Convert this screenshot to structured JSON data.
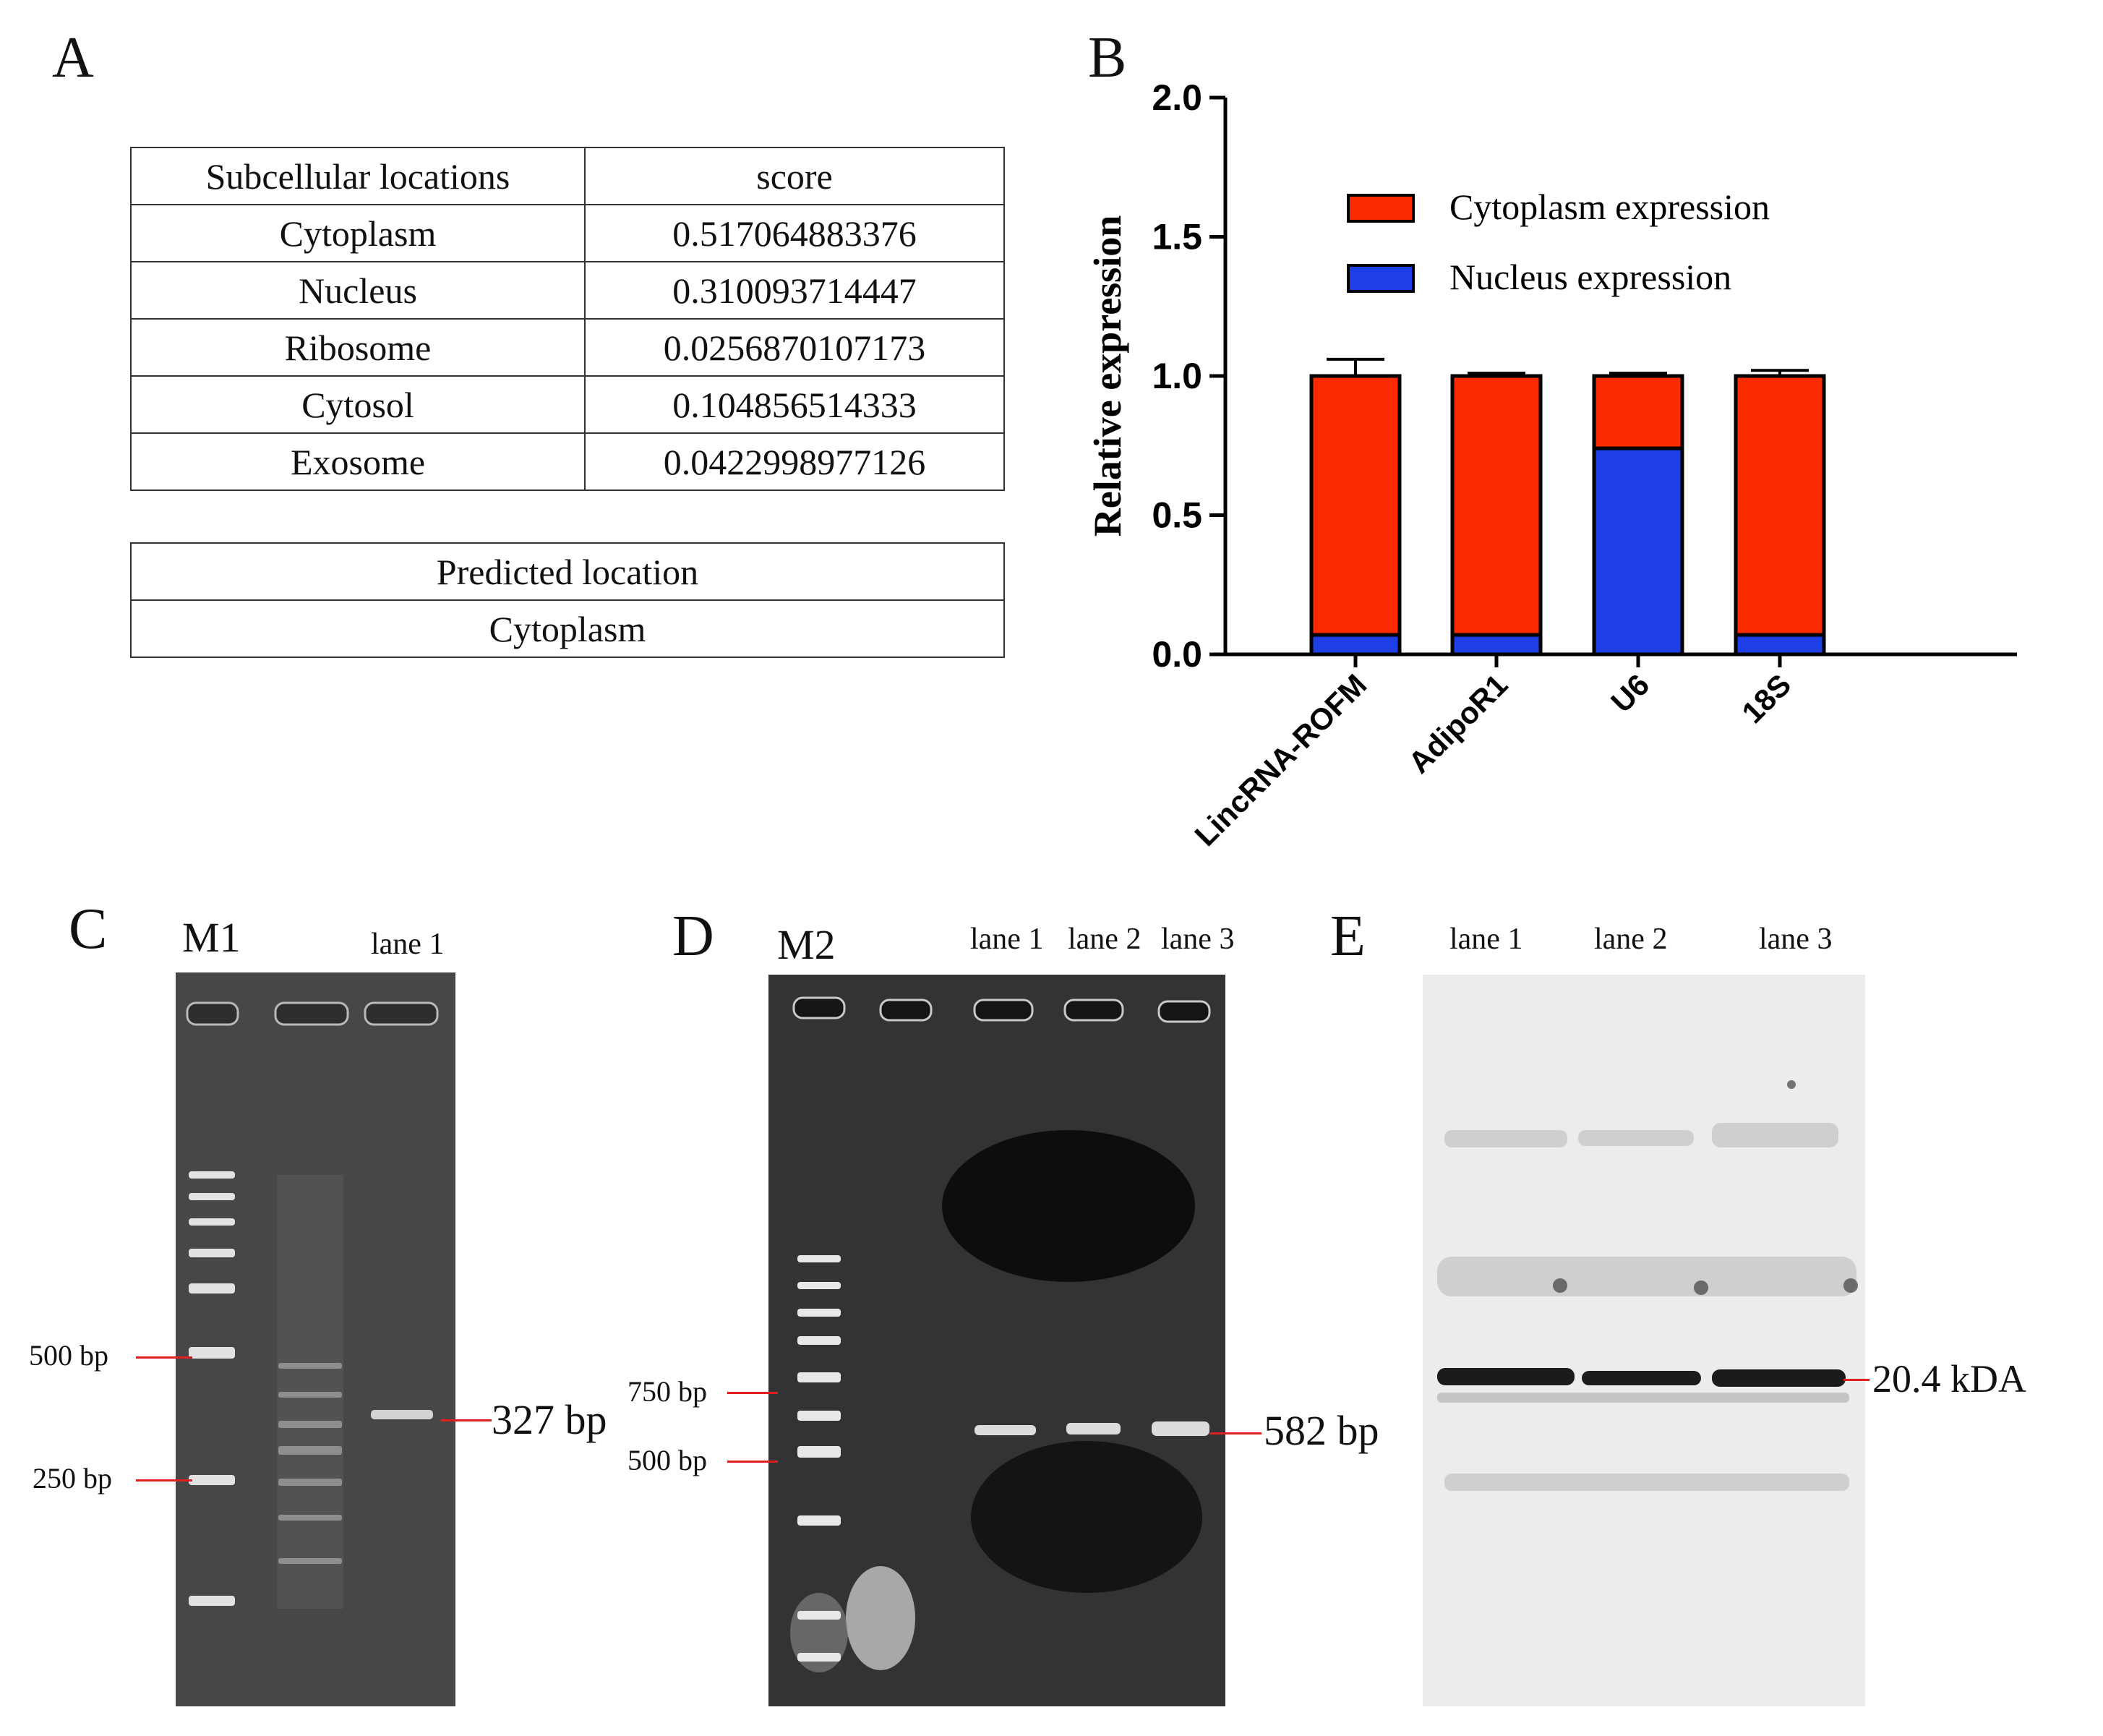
{
  "panels": {
    "a": {
      "letter": "A"
    },
    "b": {
      "letter": "B"
    },
    "c": {
      "letter": "C",
      "marker": "M1",
      "lane": "lane 1",
      "ladder": [
        "500 bp",
        "250 bp"
      ],
      "band": "327 bp"
    },
    "d": {
      "letter": "D",
      "marker": "M2",
      "lanes": [
        "lane 1",
        "lane 2",
        "lane 3"
      ],
      "ladder": [
        "750 bp",
        "500 bp"
      ],
      "band": "582 bp"
    },
    "e": {
      "letter": "E",
      "lanes": [
        "lane 1",
        "lane 2",
        "lane 3"
      ],
      "band": "20.4 kDA"
    }
  },
  "table_scores": {
    "headers": [
      "Subcellular locations",
      "score"
    ],
    "rows": [
      [
        "Cytoplasm",
        "0.517064883376"
      ],
      [
        "Nucleus",
        "0.310093714447"
      ],
      [
        "Ribosome",
        "0.0256870107173"
      ],
      [
        "Cytosol",
        "0.104856514333"
      ],
      [
        "Exosome",
        "0.0422998977126"
      ]
    ]
  },
  "table_prediction": {
    "header": "Predicted location",
    "value": "Cytoplasm"
  },
  "chart_data": {
    "type": "bar",
    "stacked": true,
    "categories": [
      "LincRNA-ROFM",
      "AdipoR1",
      "U6",
      "18S"
    ],
    "series": [
      {
        "name": "Nucleus expression",
        "color": "#1f3fe6",
        "values": [
          0.07,
          0.07,
          0.74,
          0.07
        ],
        "errors": [
          0.01,
          0.005,
          0.005,
          0.01
        ]
      },
      {
        "name": "Cytoplasm expression",
        "color": "#fb2b00",
        "values": [
          0.93,
          0.93,
          0.26,
          0.93
        ],
        "errors": [
          0.06,
          0.01,
          0.01,
          0.02
        ]
      }
    ],
    "ylabel": "Relative expression",
    "xlabel": "",
    "ylim": [
      0,
      2.0
    ],
    "yticks": [
      "0.0",
      "0.5",
      "1.0",
      "1.5",
      "2.0"
    ],
    "legend_position": "top-right",
    "grid": false
  }
}
